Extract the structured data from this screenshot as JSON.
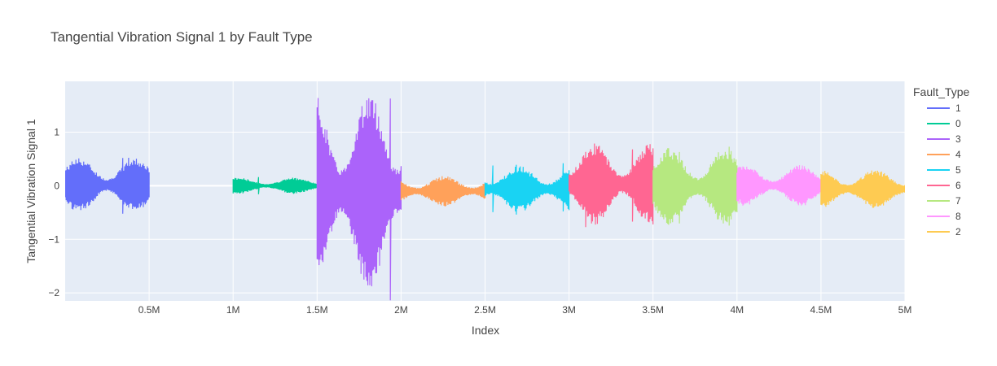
{
  "chart_data": {
    "type": "line",
    "title": "Tangential Vibration Signal 1 by Fault Type",
    "xlabel": "Index",
    "ylabel": "Tangential Vibration Signal 1",
    "xlim": [
      0,
      5000000
    ],
    "ylim": [
      -2.15,
      1.95
    ],
    "x_ticks": [
      {
        "value": 500000,
        "label": "0.5M"
      },
      {
        "value": 1000000,
        "label": "1M"
      },
      {
        "value": 1500000,
        "label": "1.5M"
      },
      {
        "value": 2000000,
        "label": "2M"
      },
      {
        "value": 2500000,
        "label": "2.5M"
      },
      {
        "value": 3000000,
        "label": "3M"
      },
      {
        "value": 3500000,
        "label": "3.5M"
      },
      {
        "value": 4000000,
        "label": "4M"
      },
      {
        "value": 4500000,
        "label": "4.5M"
      },
      {
        "value": 5000000,
        "label": "5M"
      }
    ],
    "y_ticks": [
      {
        "value": 1,
        "label": "1"
      },
      {
        "value": 0,
        "label": "0"
      },
      {
        "value": -1,
        "label": "−1"
      },
      {
        "value": -2,
        "label": "−2"
      }
    ],
    "grid": true,
    "legend_title": "Fault_Type",
    "legend_position": "right",
    "series": [
      {
        "name": "1",
        "color": "#636efa",
        "x_start": 0,
        "x_end": 500000,
        "min": -0.55,
        "max": 0.58
      },
      {
        "name": "0",
        "color": "#00cc96",
        "x_start": 1000000,
        "x_end": 1500000,
        "min": -0.17,
        "max": 0.17
      },
      {
        "name": "3",
        "color": "#ab63fa",
        "x_start": 1500000,
        "x_end": 2000000,
        "min": -2.15,
        "max": 1.95
      },
      {
        "name": "4",
        "color": "#ffa15a",
        "x_start": 2000000,
        "x_end": 2500000,
        "min": -0.42,
        "max": 0.22
      },
      {
        "name": "5",
        "color": "#19d3f3",
        "x_start": 2500000,
        "x_end": 3000000,
        "min": -0.55,
        "max": 0.43
      },
      {
        "name": "6",
        "color": "#ff6692",
        "x_start": 3000000,
        "x_end": 3500000,
        "min": -0.82,
        "max": 0.88
      },
      {
        "name": "7",
        "color": "#b6e880",
        "x_start": 3500000,
        "x_end": 4000000,
        "min": -0.82,
        "max": 0.8
      },
      {
        "name": "8",
        "color": "#ff97ff",
        "x_start": 4000000,
        "x_end": 4500000,
        "min": -0.42,
        "max": 0.43
      },
      {
        "name": "2",
        "color": "#fecb52",
        "x_start": 4500000,
        "x_end": 5000000,
        "min": -0.47,
        "max": 0.35
      }
    ],
    "gap_line": {
      "x_start": 500000,
      "x_end": 1000000,
      "y": 0
    }
  }
}
